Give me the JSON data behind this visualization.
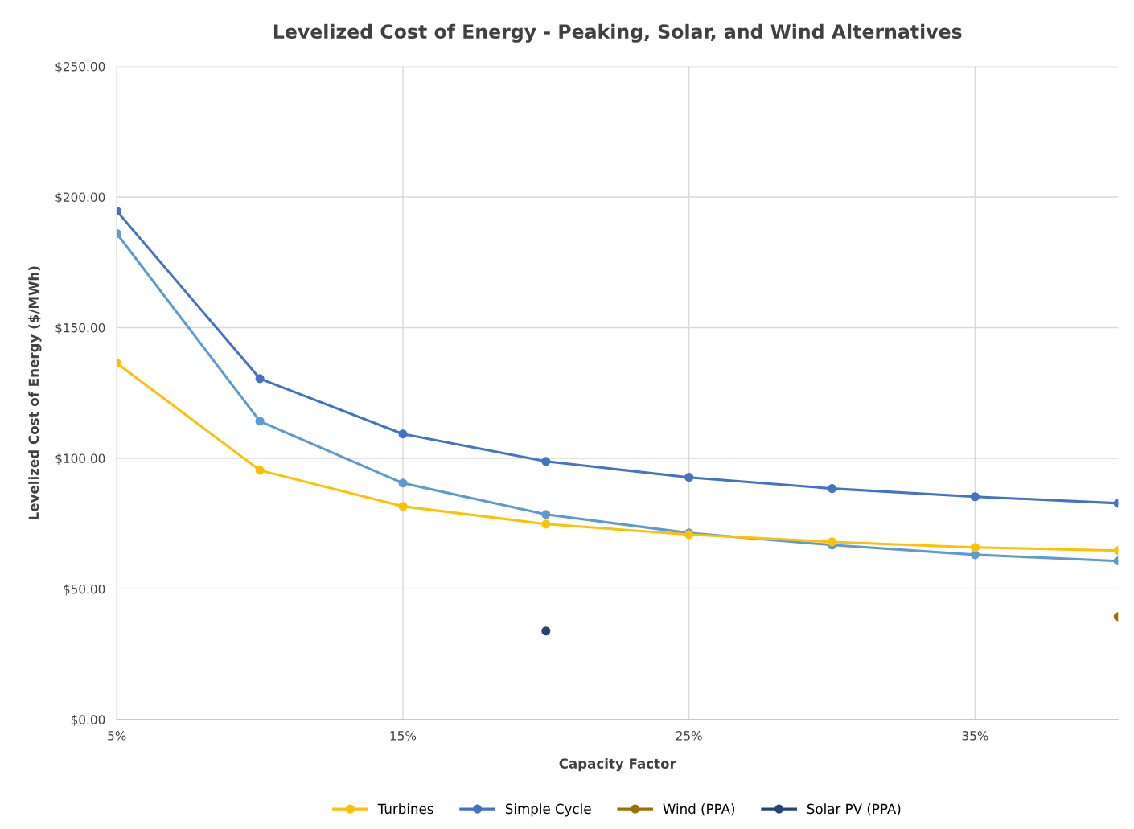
{
  "chart_data": {
    "type": "line",
    "title": "Levelized Cost of Energy - Peaking, Solar, and Wind Alternatives",
    "xlabel": "Capacity Factor",
    "ylabel": "Levelized Cost of Energy ($/MWh)",
    "x": [
      5,
      10,
      15,
      20,
      25,
      30,
      35,
      40
    ],
    "series": [
      {
        "color": "#5b9bd5",
        "values": [
          186.0,
          114.2,
          90.5,
          78.5,
          71.4,
          66.8,
          63.1,
          60.7
        ]
      },
      {
        "name": "Turbines",
        "color": "#ffc000",
        "values": [
          136.4,
          95.4,
          81.6,
          74.8,
          70.8,
          68.0,
          65.9,
          64.7
        ]
      },
      {
        "name": "Simple Cycle",
        "color": "#4472c4",
        "values": [
          194.6,
          130.5,
          109.3,
          98.8,
          92.7,
          88.4,
          85.3,
          82.8
        ]
      },
      {
        "name": "Wind (PPA)",
        "color": "#997300",
        "values": [
          null,
          null,
          null,
          null,
          null,
          null,
          null,
          39.4
        ]
      },
      {
        "name": "Solar PV (PPA)",
        "color": "#264478",
        "values": [
          null,
          null,
          null,
          33.9,
          null,
          null,
          null,
          null
        ]
      }
    ],
    "xlim": [
      5,
      40
    ],
    "xticks": [
      {
        "value": 5,
        "label": "5%"
      },
      {
        "value": 15,
        "label": "15%"
      },
      {
        "value": 25,
        "label": "25%"
      },
      {
        "value": 35,
        "label": "35%"
      }
    ],
    "ylim": [
      0,
      250
    ],
    "yticks": [
      {
        "value": 0,
        "label": "$0.00"
      },
      {
        "value": 50,
        "label": "$50.00"
      },
      {
        "value": 100,
        "label": "$100.00"
      },
      {
        "value": 150,
        "label": "$150.00"
      },
      {
        "value": 200,
        "label": "$200.00"
      },
      {
        "value": 250,
        "label": "$250.00"
      }
    ],
    "grid": true,
    "legend": "bottom",
    "marker": "circle",
    "line_style": "solid"
  }
}
